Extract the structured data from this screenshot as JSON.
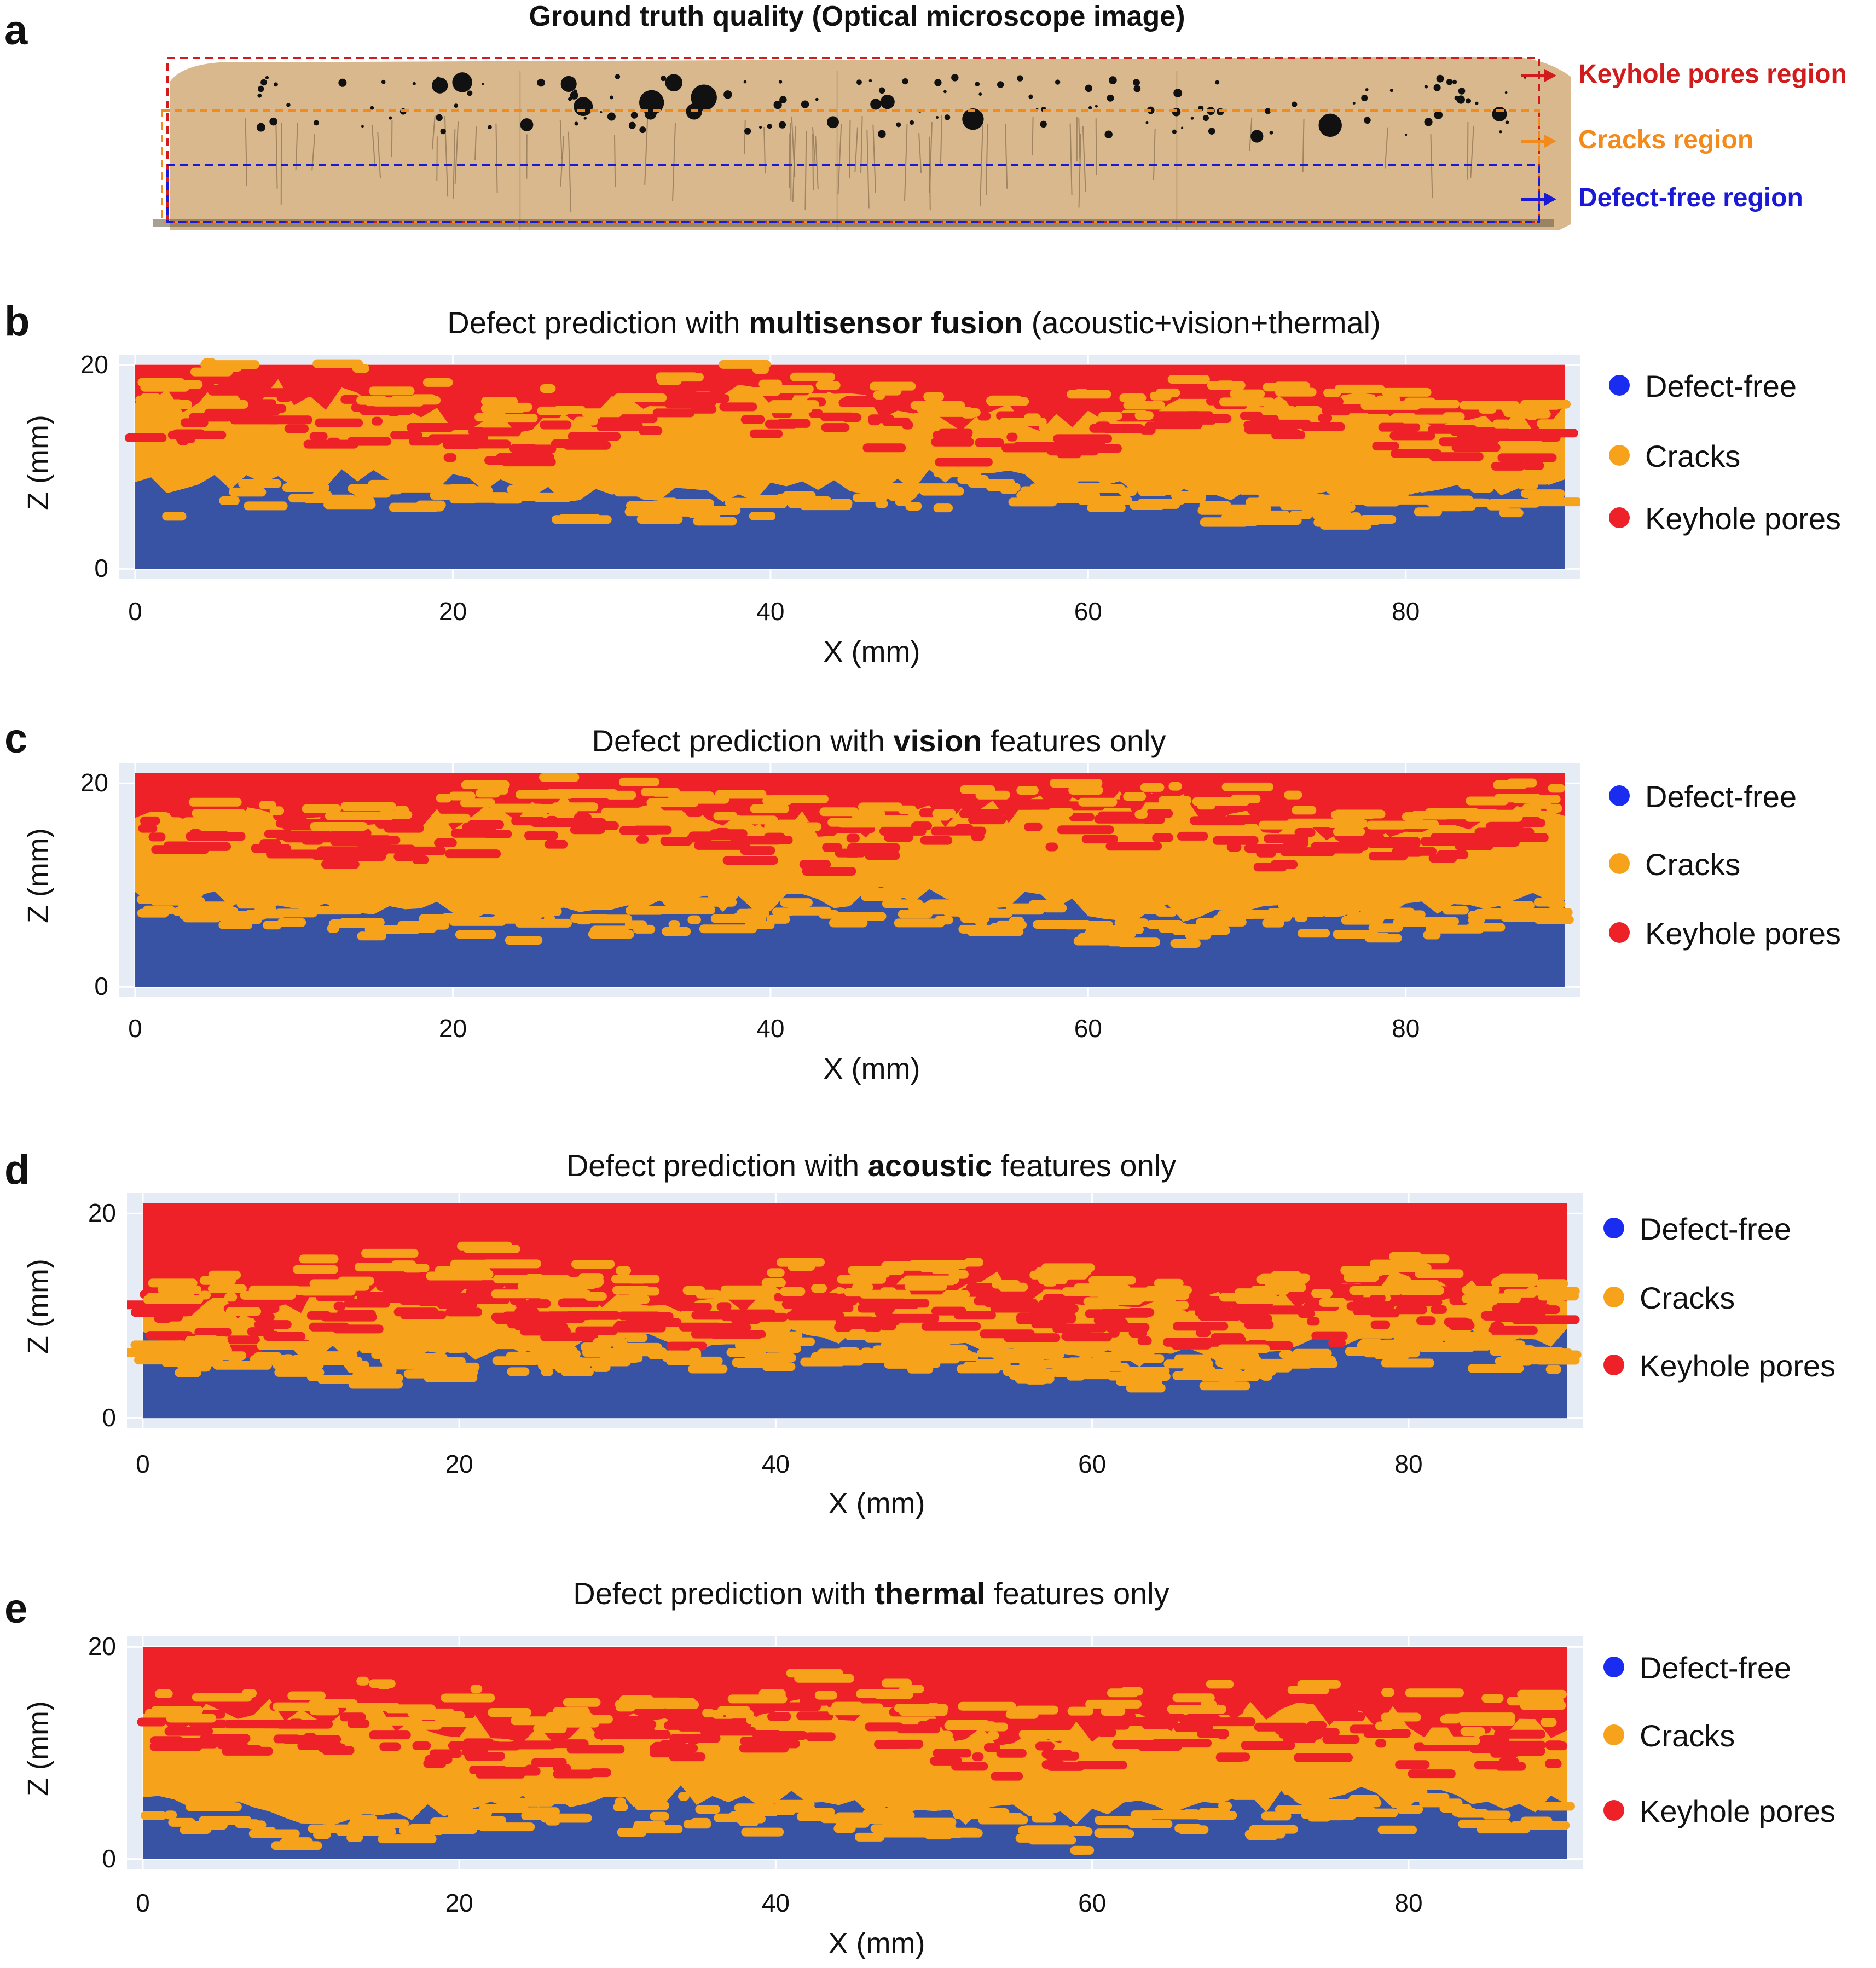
{
  "panel_a": {
    "letter": "a",
    "title": "Ground truth quality (Optical microscope image)",
    "regions": [
      {
        "label": "Keyhole pores region",
        "color": "#d01c1c"
      },
      {
        "label": "Cracks region",
        "color": "#f28a1c"
      },
      {
        "label": "Defect-free region",
        "color": "#1a1ad6"
      }
    ],
    "sample_color": "#d8b88c"
  },
  "colors": {
    "defect_free": "#3953a4",
    "cracks": "#f7a21b",
    "keyhole": "#ee2028",
    "legend_defect_free": "#1a2cf0",
    "legend_cracks": "#f7a21b",
    "legend_keyhole": "#ee2028",
    "plot_bg": "#e6ecf6"
  },
  "legend": [
    "Defect-free",
    "Cracks",
    "Keyhole pores"
  ],
  "chart_data": [
    {
      "type": "scatter",
      "letter": "b",
      "title_pre": "Defect prediction with ",
      "title_bold": "multisensor fusion",
      "title_post": " (acoustic+vision+thermal)",
      "xlabel": "X (mm)",
      "ylabel": "Z (mm)",
      "xlim": [
        -1,
        91
      ],
      "ylim": [
        -1,
        21
      ],
      "xticks": [
        "0",
        "20",
        "40",
        "60",
        "80"
      ],
      "yticks": [
        "0",
        "20"
      ],
      "series": [
        {
          "name": "Defect-free",
          "z_range": [
            0,
            8
          ]
        },
        {
          "name": "Cracks",
          "z_range": [
            8,
            16
          ]
        },
        {
          "name": "Keyhole pores",
          "z_range": [
            16,
            20
          ]
        }
      ]
    },
    {
      "type": "scatter",
      "letter": "c",
      "title_pre": "Defect prediction with ",
      "title_bold": "vision",
      "title_post": " features only",
      "xlabel": "X (mm)",
      "ylabel": "Z (mm)",
      "xlim": [
        -1,
        91
      ],
      "ylim": [
        -1,
        22
      ],
      "xticks": [
        "0",
        "20",
        "40",
        "60",
        "80"
      ],
      "yticks": [
        "0",
        "20"
      ],
      "series": [
        {
          "name": "Defect-free",
          "z_range": [
            0,
            8
          ]
        },
        {
          "name": "Cracks",
          "z_range": [
            8,
            17
          ]
        },
        {
          "name": "Keyhole pores",
          "z_range": [
            17,
            21
          ]
        }
      ]
    },
    {
      "type": "scatter",
      "letter": "d",
      "title_pre": "Defect prediction with ",
      "title_bold": "acoustic",
      "title_post": " features only",
      "xlabel": "X (mm)",
      "ylabel": "Z (mm)",
      "xlim": [
        -1,
        91
      ],
      "ylim": [
        -1,
        22
      ],
      "xticks": [
        "0",
        "20",
        "40",
        "60",
        "80"
      ],
      "yticks": [
        "0",
        "20"
      ],
      "series": [
        {
          "name": "Defect-free",
          "z_range": [
            0,
            7
          ]
        },
        {
          "name": "Cracks",
          "z_range": [
            7,
            12
          ]
        },
        {
          "name": "Keyhole pores",
          "z_range": [
            12,
            21
          ]
        }
      ]
    },
    {
      "type": "scatter",
      "letter": "e",
      "title_pre": "Defect prediction with ",
      "title_bold": "thermal",
      "title_post": " features only",
      "xlabel": "X (mm)",
      "ylabel": "Z (mm)",
      "xlim": [
        -1,
        91
      ],
      "ylim": [
        -1,
        21
      ],
      "xticks": [
        "0",
        "20",
        "40",
        "60",
        "80"
      ],
      "yticks": [
        "0",
        "20"
      ],
      "series": [
        {
          "name": "Defect-free",
          "z_range": [
            0,
            5
          ]
        },
        {
          "name": "Cracks",
          "z_range": [
            5,
            13
          ]
        },
        {
          "name": "Keyhole pores",
          "z_range": [
            13,
            20
          ]
        }
      ]
    }
  ]
}
